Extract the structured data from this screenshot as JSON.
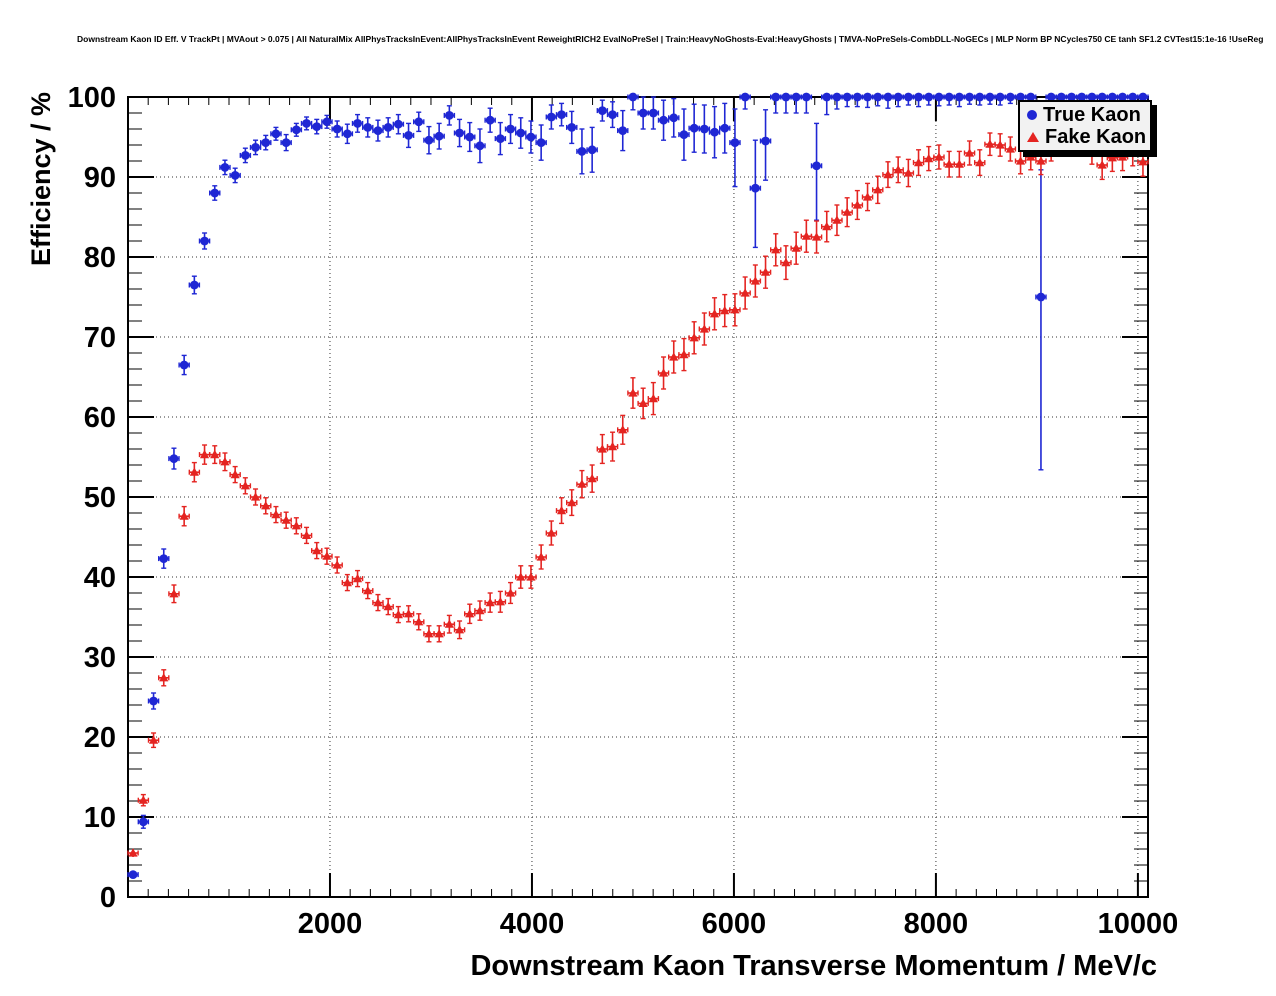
{
  "title": "Downstream Kaon ID Eff. V TrackPt | MVAout > 0.075 | All NaturalMix AllPhysTracksInEvent:AllPhysTracksInEvent ReweightRICH2 EvalNoPreSel | Train:HeavyNoGhosts-Eval:HeavyGhosts | TMVA-NoPreSels-CombDLL-NoGECs | MLP Norm BP NCycles750 CE tanh SF1.2 CVTest15:1e-16 !UseReg",
  "legend": {
    "items": [
      {
        "label": "True Kaon",
        "marker": "circle",
        "color": "#1f27d4"
      },
      {
        "label": "Fake Kaon",
        "marker": "triangle",
        "color": "#e42421"
      }
    ]
  },
  "chart_data": {
    "type": "scatter",
    "title": "Downstream Kaon ID Eff. V TrackPt | MVAout > 0.075 | All NaturalMix AllPhysTracksInEvent:AllPhysTracksInEvent ReweightRICH2 EvalNoPreSel | Train:HeavyNoGhosts-Eval:HeavyGhosts | TMVA-NoPreSels-CombDLL-NoGECs | MLP Norm BP NCycles750 CE tanh SF1.2 CVTest15:1e-16 !UseReg",
    "xlabel": "Downstream Kaon Transverse Momentum / MeV/c",
    "ylabel": "Efficiency / %",
    "xlim": [
      0,
      10100
    ],
    "ylim": [
      0,
      100
    ],
    "x_major_ticks": [
      2000,
      4000,
      6000,
      8000,
      10000
    ],
    "y_major_ticks": [
      0,
      10,
      20,
      30,
      40,
      50,
      60,
      70,
      80,
      90,
      100
    ],
    "x_minor_step": 200,
    "y_minor_step": 2,
    "grid": true,
    "legend_position": "top-right",
    "point_format": "[x, y, err_low, err_high(optional, else symmetric)]",
    "bin_half_width": 50,
    "series": [
      {
        "name": "True Kaon",
        "marker": "circle",
        "color": "#1f27d4",
        "points": [
          [
            50,
            2.8,
            0.5,
            0.5
          ],
          [
            152,
            9.4,
            0.8,
            0.8
          ],
          [
            253,
            24.5,
            1.0,
            1.0
          ],
          [
            354,
            42.3,
            1.2,
            1.2
          ],
          [
            455,
            54.8,
            1.3,
            1.3
          ],
          [
            556,
            66.5,
            1.2,
            1.2
          ],
          [
            657,
            76.5,
            1.1,
            1.1
          ],
          [
            758,
            82.0,
            1.0,
            1.0
          ],
          [
            859,
            88.0,
            0.9,
            0.9
          ],
          [
            960,
            91.2,
            0.9,
            0.9
          ],
          [
            1061,
            90.2,
            0.9,
            0.9
          ],
          [
            1162,
            92.7,
            0.9,
            0.9
          ],
          [
            1263,
            93.7,
            0.9,
            0.9
          ],
          [
            1364,
            94.3,
            0.9,
            0.9
          ],
          [
            1465,
            95.4,
            0.8,
            0.8
          ],
          [
            1566,
            94.3,
            1.0,
            1.0
          ],
          [
            1667,
            95.9,
            0.8,
            0.8
          ],
          [
            1768,
            96.7,
            0.8,
            0.8
          ],
          [
            1869,
            96.3,
            0.9,
            0.9
          ],
          [
            1970,
            96.9,
            0.8,
            0.8
          ],
          [
            2071,
            96.0,
            1.0,
            1.0
          ],
          [
            2172,
            95.4,
            1.2,
            1.2
          ],
          [
            2273,
            96.7,
            1.1,
            1.1
          ],
          [
            2374,
            96.2,
            1.2,
            1.2
          ],
          [
            2475,
            95.8,
            1.3,
            1.3
          ],
          [
            2576,
            96.2,
            1.2,
            1.2
          ],
          [
            2677,
            96.6,
            1.2,
            1.2
          ],
          [
            2778,
            95.2,
            1.5,
            1.5
          ],
          [
            2879,
            96.9,
            1.2,
            1.2
          ],
          [
            2980,
            94.6,
            1.7,
            1.7
          ],
          [
            3081,
            95.1,
            1.6,
            1.6
          ],
          [
            3182,
            97.7,
            1.2,
            1.2
          ],
          [
            3283,
            95.5,
            1.7,
            1.7
          ],
          [
            3384,
            95.0,
            1.8,
            1.8
          ],
          [
            3485,
            93.9,
            2.1,
            2.1
          ],
          [
            3586,
            97.1,
            1.5,
            1.5
          ],
          [
            3687,
            94.8,
            2.0,
            2.0
          ],
          [
            3788,
            96.0,
            1.8,
            1.8
          ],
          [
            3889,
            95.5,
            1.9,
            1.9
          ],
          [
            3990,
            95.0,
            2.0,
            2.0
          ],
          [
            4091,
            94.3,
            2.2,
            2.2
          ],
          [
            4192,
            97.5,
            1.5,
            1.5
          ],
          [
            4293,
            97.8,
            1.4,
            1.4
          ],
          [
            4394,
            96.2,
            2.0,
            2.0
          ],
          [
            4495,
            93.2,
            2.8,
            2.8
          ],
          [
            4596,
            93.4,
            2.8,
            2.8
          ],
          [
            4697,
            98.3,
            1.3,
            1.3
          ],
          [
            4798,
            97.8,
            1.6,
            1.6
          ],
          [
            4899,
            95.8,
            2.5,
            2.5
          ],
          [
            5000,
            100,
            1.6,
            0
          ],
          [
            5101,
            98.0,
            2.0,
            2.0
          ],
          [
            5202,
            98.0,
            2.0,
            2.0
          ],
          [
            5303,
            97.1,
            2.5,
            2.5
          ],
          [
            5404,
            97.4,
            2.4,
            2.4
          ],
          [
            5505,
            95.3,
            3.2,
            3.2
          ],
          [
            5606,
            96.1,
            3.0,
            3.0
          ],
          [
            5707,
            96.0,
            3.0,
            3.0
          ],
          [
            5808,
            95.6,
            3.2,
            3.2
          ],
          [
            5909,
            96.1,
            3.1,
            3.1
          ],
          [
            6010,
            94.3,
            5.5,
            4.2
          ],
          [
            6111,
            100,
            1.5,
            0
          ],
          [
            6212,
            88.6,
            7.4,
            6.0
          ],
          [
            6313,
            94.5,
            4.9,
            3.9
          ],
          [
            6414,
            100,
            2.0,
            0
          ],
          [
            6515,
            100,
            2.0,
            0
          ],
          [
            6616,
            100,
            2.0,
            0
          ],
          [
            6717,
            100,
            2.0,
            0
          ],
          [
            6818,
            91.4,
            6.8,
            5.3
          ],
          [
            6919,
            100,
            2.2,
            0
          ],
          [
            7020,
            100,
            1.5,
            0
          ],
          [
            7121,
            100,
            1.2,
            0
          ],
          [
            7222,
            100,
            1.2,
            0
          ],
          [
            7323,
            100,
            1.3,
            0
          ],
          [
            7424,
            100,
            1.1,
            0
          ],
          [
            7525,
            100,
            1.4,
            0
          ],
          [
            7626,
            100,
            1.2,
            0
          ],
          [
            7727,
            100,
            1.0,
            0
          ],
          [
            7828,
            100,
            1.2,
            0
          ],
          [
            7929,
            100,
            1.0,
            0
          ],
          [
            8030,
            100,
            1.1,
            0
          ],
          [
            8131,
            100,
            1.0,
            0
          ],
          [
            8232,
            100,
            1.2,
            0
          ],
          [
            8333,
            100,
            0.9,
            0
          ],
          [
            8434,
            100,
            1.0,
            0
          ],
          [
            8535,
            100,
            0.9,
            0
          ],
          [
            8636,
            100,
            1.0,
            0
          ],
          [
            8737,
            100,
            0.8,
            0
          ],
          [
            8838,
            100,
            1.0,
            0
          ],
          [
            8939,
            100,
            0.9,
            0
          ],
          [
            9040,
            75.0,
            21.6,
            15.9
          ],
          [
            9141,
            100,
            1.0,
            0
          ],
          [
            9242,
            100,
            1.2,
            0
          ],
          [
            9343,
            100,
            0.9,
            0
          ],
          [
            9444,
            100,
            1.0,
            0
          ],
          [
            9545,
            100,
            1.1,
            0
          ],
          [
            9646,
            100,
            1.0,
            0
          ],
          [
            9747,
            100,
            1.2,
            0
          ],
          [
            9848,
            100,
            0.9,
            0
          ],
          [
            9949,
            100,
            1.0,
            0
          ],
          [
            10050,
            100,
            1.0,
            0
          ]
        ]
      },
      {
        "name": "Fake Kaon",
        "marker": "triangle",
        "color": "#e42421",
        "points": [
          [
            50,
            5.5,
            0.5
          ],
          [
            152,
            12.1,
            0.7
          ],
          [
            253,
            19.6,
            0.9
          ],
          [
            354,
            27.4,
            1.0
          ],
          [
            455,
            37.9,
            1.1
          ],
          [
            556,
            47.6,
            1.2
          ],
          [
            657,
            53.1,
            1.2
          ],
          [
            758,
            55.3,
            1.2
          ],
          [
            859,
            55.3,
            1.1
          ],
          [
            960,
            54.4,
            1.1
          ],
          [
            1061,
            52.8,
            1.0
          ],
          [
            1162,
            51.4,
            1.0
          ],
          [
            1263,
            50.0,
            1.0
          ],
          [
            1364,
            48.9,
            1.0
          ],
          [
            1465,
            47.8,
            1.0
          ],
          [
            1566,
            47.1,
            1.0
          ],
          [
            1667,
            46.4,
            1.0
          ],
          [
            1768,
            45.2,
            1.0
          ],
          [
            1869,
            43.3,
            1.0
          ],
          [
            1970,
            42.6,
            1.0
          ],
          [
            2071,
            41.5,
            1.0
          ],
          [
            2172,
            39.3,
            1.0
          ],
          [
            2273,
            39.8,
            1.0
          ],
          [
            2374,
            38.3,
            1.0
          ],
          [
            2475,
            36.8,
            1.0
          ],
          [
            2576,
            36.3,
            1.0
          ],
          [
            2677,
            35.3,
            1.0
          ],
          [
            2778,
            35.4,
            1.0
          ],
          [
            2879,
            34.4,
            1.0
          ],
          [
            2980,
            32.9,
            1.0
          ],
          [
            3081,
            32.9,
            1.0
          ],
          [
            3182,
            34.1,
            1.1
          ],
          [
            3283,
            33.4,
            1.1
          ],
          [
            3384,
            35.4,
            1.2
          ],
          [
            3485,
            35.8,
            1.2
          ],
          [
            3586,
            36.8,
            1.2
          ],
          [
            3687,
            36.9,
            1.3
          ],
          [
            3788,
            38.0,
            1.3
          ],
          [
            3889,
            40.0,
            1.4
          ],
          [
            3990,
            40.0,
            1.4
          ],
          [
            4091,
            42.5,
            1.5
          ],
          [
            4192,
            45.5,
            1.5
          ],
          [
            4293,
            48.3,
            1.6
          ],
          [
            4394,
            49.3,
            1.6
          ],
          [
            4495,
            51.6,
            1.7
          ],
          [
            4596,
            52.3,
            1.7
          ],
          [
            4697,
            56.0,
            1.8
          ],
          [
            4798,
            56.3,
            1.8
          ],
          [
            4899,
            58.4,
            1.8
          ],
          [
            5000,
            63.0,
            1.9
          ],
          [
            5101,
            61.7,
            1.9
          ],
          [
            5202,
            62.3,
            2.0
          ],
          [
            5303,
            65.5,
            2.0
          ],
          [
            5404,
            67.5,
            2.0
          ],
          [
            5505,
            67.8,
            2.0
          ],
          [
            5606,
            69.9,
            2.0
          ],
          [
            5707,
            71.0,
            2.0
          ],
          [
            5808,
            72.9,
            2.0
          ],
          [
            5909,
            73.3,
            2.0
          ],
          [
            6010,
            73.4,
            2.0
          ],
          [
            6111,
            75.5,
            2.0
          ],
          [
            6212,
            77.0,
            2.0
          ],
          [
            6313,
            78.1,
            2.0
          ],
          [
            6414,
            80.9,
            2.0
          ],
          [
            6515,
            79.3,
            2.1
          ],
          [
            6616,
            81.1,
            2.0
          ],
          [
            6717,
            82.6,
            2.0
          ],
          [
            6818,
            82.5,
            2.0
          ],
          [
            6919,
            83.8,
            1.9
          ],
          [
            7020,
            84.6,
            1.9
          ],
          [
            7121,
            85.6,
            1.8
          ],
          [
            7222,
            86.5,
            1.8
          ],
          [
            7323,
            87.5,
            1.7
          ],
          [
            7424,
            88.4,
            1.7
          ],
          [
            7525,
            90.3,
            1.6
          ],
          [
            7626,
            90.9,
            1.6
          ],
          [
            7727,
            90.5,
            1.7
          ],
          [
            7828,
            91.8,
            1.6
          ],
          [
            7929,
            92.3,
            1.5
          ],
          [
            8030,
            92.5,
            1.5
          ],
          [
            8131,
            91.6,
            1.6
          ],
          [
            8232,
            91.6,
            1.6
          ],
          [
            8333,
            93.0,
            1.5
          ],
          [
            8434,
            91.8,
            1.6
          ],
          [
            8535,
            94.1,
            1.4
          ],
          [
            8636,
            94.0,
            1.4
          ],
          [
            8737,
            93.5,
            1.5
          ],
          [
            8838,
            92.0,
            1.6
          ],
          [
            8939,
            92.5,
            1.6
          ],
          [
            9040,
            92.0,
            1.7
          ],
          [
            9141,
            93.5,
            1.5
          ],
          [
            9242,
            94.3,
            1.4
          ],
          [
            9343,
            94.6,
            1.4
          ],
          [
            9444,
            94.2,
            1.5
          ],
          [
            9545,
            93.2,
            1.6
          ],
          [
            9646,
            91.5,
            1.8
          ],
          [
            9747,
            92.4,
            1.7
          ],
          [
            9848,
            92.5,
            1.7
          ],
          [
            9949,
            93.0,
            1.6
          ],
          [
            10050,
            91.9,
            1.8
          ]
        ]
      }
    ]
  }
}
